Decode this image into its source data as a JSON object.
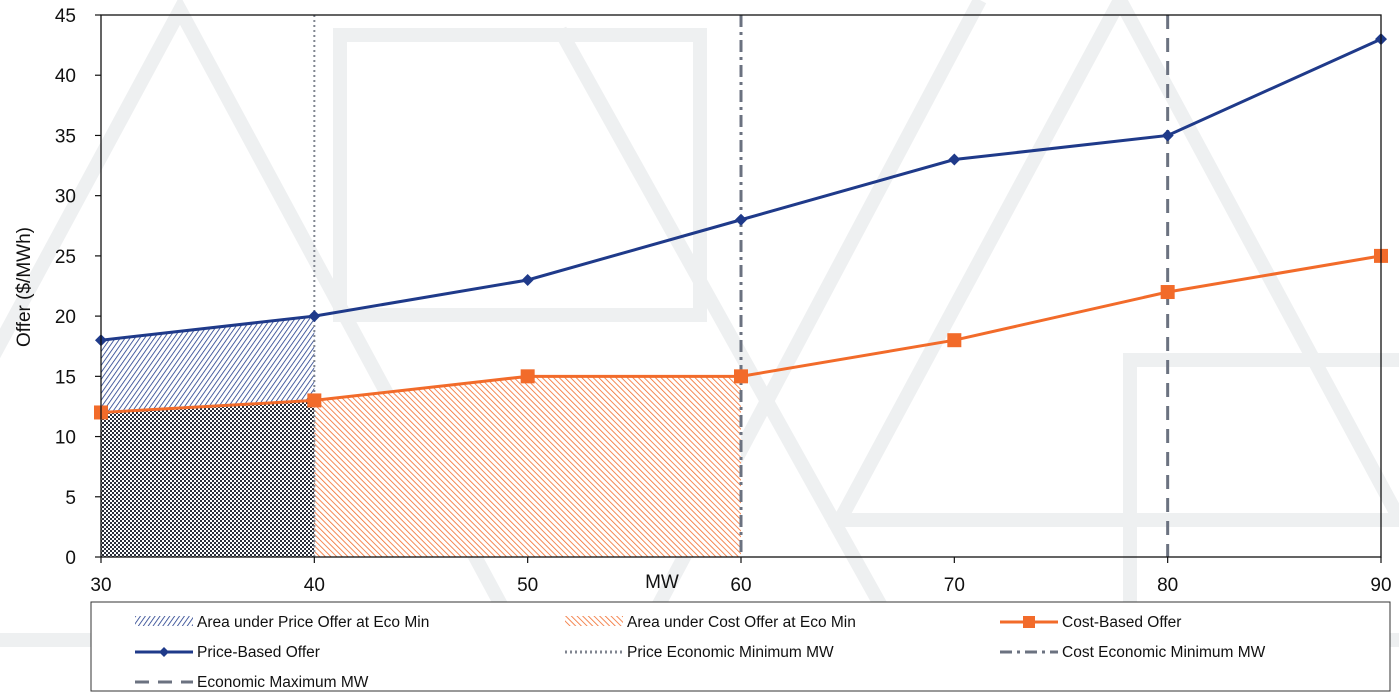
{
  "chart_data": {
    "type": "line",
    "title": "",
    "xlabel": "MW",
    "ylabel": "Offer ($/MWh)",
    "xlim": [
      30,
      90
    ],
    "ylim": [
      0,
      45
    ],
    "x_ticks": [
      "30",
      "40",
      "50",
      "60",
      "70",
      "80",
      "90"
    ],
    "y_ticks": [
      "0",
      "5",
      "10",
      "15",
      "20",
      "25",
      "30",
      "35",
      "40",
      "45"
    ],
    "grid": false,
    "legend_position": "bottom",
    "x": [
      30,
      40,
      50,
      60,
      70,
      80,
      90
    ],
    "series": [
      {
        "name": "Price-Based Offer",
        "values": [
          18,
          20,
          23,
          28,
          33,
          35,
          43
        ],
        "color": "#1f3a8a",
        "marker": "diamond"
      },
      {
        "name": "Cost-Based Offer",
        "values": [
          12,
          13,
          15,
          15,
          18,
          22,
          25
        ],
        "color": "#f26b2a",
        "marker": "square"
      }
    ],
    "areas": [
      {
        "name": "Area under Price Offer at Eco Min",
        "x": [
          30,
          40
        ],
        "values": [
          18,
          20
        ],
        "color": "#1f3a8a",
        "pattern": "diagonal-hatch"
      },
      {
        "name": "Area under Cost Offer at Eco Min",
        "x": [
          30,
          40,
          50,
          60
        ],
        "values": [
          12,
          13,
          15,
          15
        ],
        "color": "#f26b2a",
        "pattern": "diagonal-hatch"
      }
    ],
    "vertical_lines": [
      {
        "name": "Price Economic Minimum MW",
        "x": 40,
        "color": "#808590",
        "style": "dotted"
      },
      {
        "name": "Cost Economic Minimum MW",
        "x": 60,
        "color": "#6b7280",
        "style": "dash-dot"
      },
      {
        "name": "Economic Maximum MW",
        "x": 80,
        "color": "#6b7280",
        "style": "dashed"
      }
    ],
    "legend": {
      "rows": [
        [
          "Area under Price Offer at Eco Min",
          "Area under Cost Offer at Eco Min",
          "Cost-Based Offer"
        ],
        [
          "Price-Based Offer",
          "Price Economic Minimum MW",
          "Cost Economic Minimum MW"
        ],
        [
          "Economic Maximum MW"
        ]
      ]
    }
  }
}
